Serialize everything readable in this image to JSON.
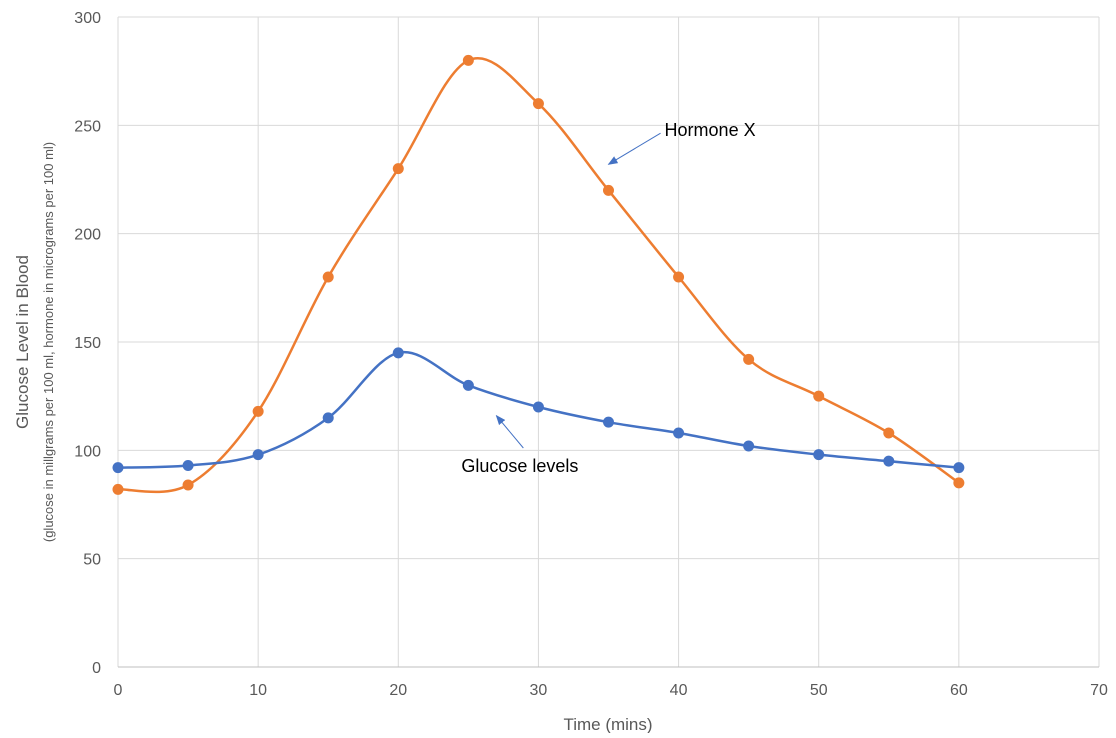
{
  "chart_data": {
    "type": "line",
    "title": "",
    "xlabel": "Time (mins)",
    "ylabel": "Glucose Level in Blood",
    "ylabel_sub": "(glucose in millgrams per 100 ml, hormone in micrograms per 100 ml)",
    "xlim": [
      0,
      70
    ],
    "ylim": [
      0,
      300
    ],
    "xticks": [
      0,
      10,
      20,
      30,
      40,
      50,
      60,
      70
    ],
    "yticks": [
      0,
      50,
      100,
      150,
      200,
      250,
      300
    ],
    "grid": true,
    "smooth": true,
    "x": [
      0,
      5,
      10,
      15,
      20,
      25,
      30,
      35,
      40,
      45,
      50,
      55,
      60
    ],
    "series": [
      {
        "name": "Hormone X",
        "color": "#ED7D31",
        "values": [
          82,
          84,
          118,
          180,
          230,
          280,
          260,
          220,
          180,
          142,
          125,
          108,
          85
        ]
      },
      {
        "name": "Glucose levels",
        "color": "#4472C4",
        "values": [
          92,
          93,
          98,
          115,
          145,
          130,
          120,
          113,
          108,
          102,
          98,
          95,
          92
        ]
      }
    ],
    "annotations": [
      {
        "text": "Hormone X",
        "arrow_to": [
          35,
          232
        ],
        "text_at": [
          39,
          245
        ]
      },
      {
        "text": "Glucose levels",
        "arrow_to": [
          27,
          116
        ],
        "text_at": [
          24.5,
          90
        ]
      }
    ]
  }
}
